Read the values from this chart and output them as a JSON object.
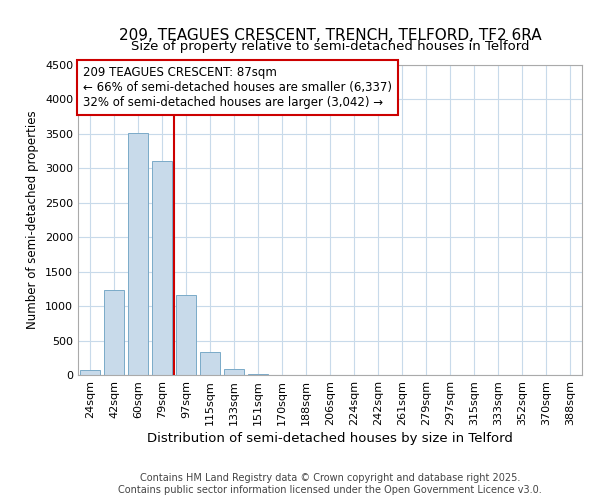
{
  "title_line1": "209, TEAGUES CRESCENT, TRENCH, TELFORD, TF2 6RA",
  "title_line2": "Size of property relative to semi-detached houses in Telford",
  "xlabel": "Distribution of semi-detached houses by size in Telford",
  "ylabel": "Number of semi-detached properties",
  "categories": [
    "24sqm",
    "42sqm",
    "60sqm",
    "79sqm",
    "97sqm",
    "115sqm",
    "133sqm",
    "151sqm",
    "170sqm",
    "188sqm",
    "206sqm",
    "224sqm",
    "242sqm",
    "261sqm",
    "279sqm",
    "297sqm",
    "315sqm",
    "333sqm",
    "352sqm",
    "370sqm",
    "388sqm"
  ],
  "values": [
    75,
    1230,
    3520,
    3100,
    1160,
    340,
    90,
    15,
    3,
    1,
    0,
    0,
    0,
    0,
    0,
    0,
    0,
    0,
    0,
    0,
    0
  ],
  "bar_color": "#c8daea",
  "bar_edge_color": "#7aaac8",
  "vline_color": "#cc0000",
  "vline_x": 3.5,
  "annotation_text": "209 TEAGUES CRESCENT: 87sqm\n← 66% of semi-detached houses are smaller (6,337)\n32% of semi-detached houses are larger (3,042) →",
  "annotation_box_color": "#cc0000",
  "ylim": [
    0,
    4500
  ],
  "yticks": [
    0,
    500,
    1000,
    1500,
    2000,
    2500,
    3000,
    3500,
    4000,
    4500
  ],
  "footer_line1": "Contains HM Land Registry data © Crown copyright and database right 2025.",
  "footer_line2": "Contains public sector information licensed under the Open Government Licence v3.0.",
  "bg_color": "#ffffff",
  "grid_color": "#c8daea",
  "title_fontsize": 11,
  "subtitle_fontsize": 9.5,
  "ylabel_fontsize": 8.5,
  "xlabel_fontsize": 9.5,
  "tick_fontsize": 8,
  "annot_fontsize": 8.5,
  "footer_fontsize": 7
}
